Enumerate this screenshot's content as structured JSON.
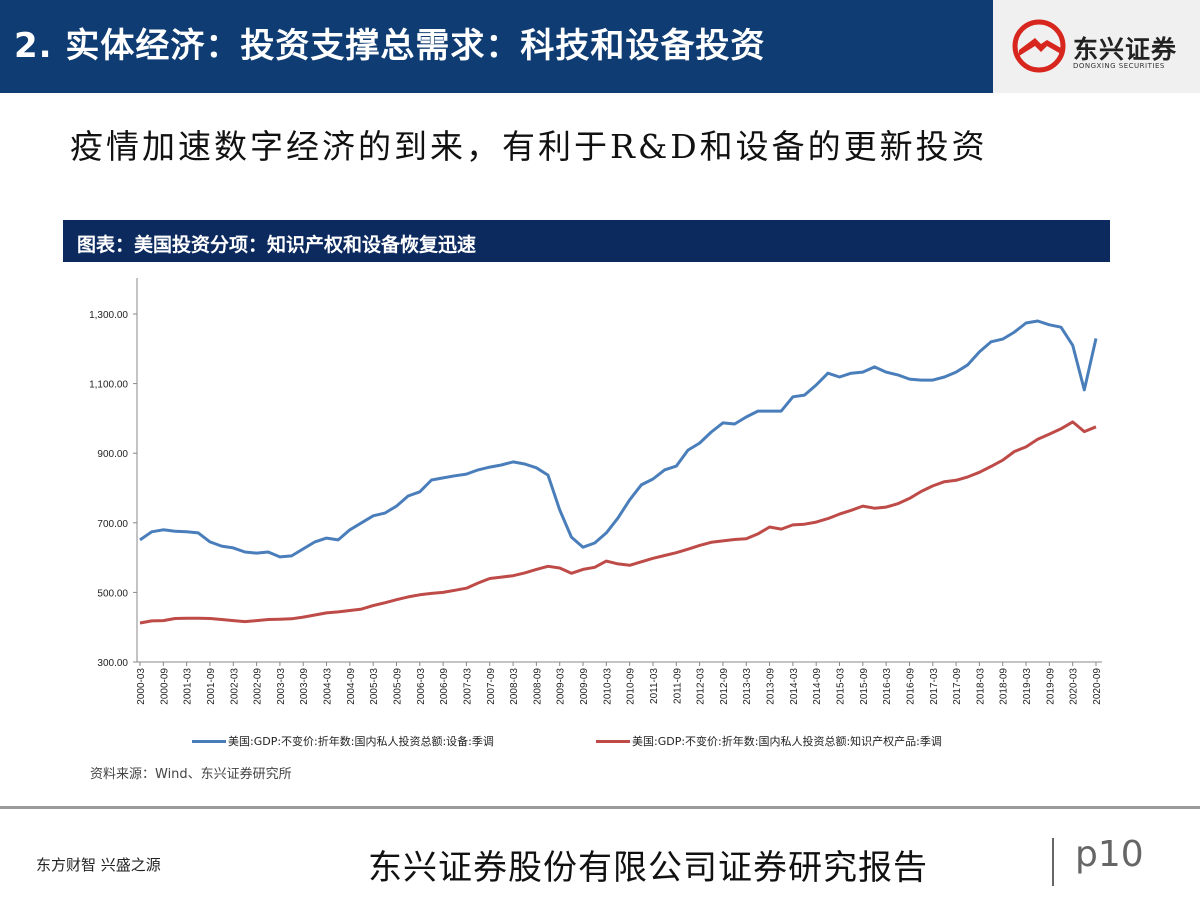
{
  "header": {
    "title": "2. 实体经济：投资支撑总需求：科技和设备投资",
    "logo_cn": "东兴证券",
    "logo_en": "DONGXING SECURITIES"
  },
  "subtitle": "疫情加速数字经济的到来，有利于R&D和设备的更新投资",
  "chart_title": "图表：美国投资分项：知识产权和设备恢复迅速",
  "chart_data": {
    "type": "line",
    "title": "",
    "xlabel": "",
    "ylabel": "",
    "ylim": [
      300,
      1400
    ],
    "yticks": [
      "300.00",
      "500.00",
      "700.00",
      "900.00",
      "1,100.00",
      "1,300.00"
    ],
    "ytick_values": [
      300,
      500,
      700,
      900,
      1100,
      1300
    ],
    "grid": false,
    "legend_position": "bottom",
    "x_start": "2000-03",
    "x_step_months": 3,
    "xticks": [
      "2000-03",
      "2000-09",
      "2001-03",
      "2001-09",
      "2002-03",
      "2002-09",
      "2003-03",
      "2003-09",
      "2004-03",
      "2004-09",
      "2005-03",
      "2005-09",
      "2006-03",
      "2006-09",
      "2007-03",
      "2007-09",
      "2008-03",
      "2008-09",
      "2009-03",
      "2009-09",
      "2010-03",
      "2010-09",
      "2011-03",
      "2011-09",
      "2012-03",
      "2012-09",
      "2013-03",
      "2013-09",
      "2014-03",
      "2014-09",
      "2015-03",
      "2015-09",
      "2016-03",
      "2016-09",
      "2017-03",
      "2017-09",
      "2018-03",
      "2018-09",
      "2019-03",
      "2019-09",
      "2020-03",
      "2020-09"
    ],
    "series": [
      {
        "name": "美国:GDP:不变价:折年数:国内私人投资总额:设备:季调",
        "color": "#4a7ebb",
        "values": [
          651,
          674,
          680,
          676,
          674,
          671,
          645,
          633,
          628,
          616,
          613,
          616,
          602,
          605,
          625,
          645,
          656,
          651,
          680,
          700,
          720,
          728,
          748,
          777,
          789,
          823,
          829,
          835,
          840,
          852,
          860,
          866,
          875,
          869,
          858,
          837,
          737,
          659,
          630,
          642,
          671,
          714,
          766,
          809,
          826,
          852,
          863,
          909,
          929,
          961,
          987,
          984,
          1004,
          1021,
          1021,
          1021,
          1062,
          1067,
          1096,
          1130,
          1119,
          1130,
          1133,
          1148,
          1133,
          1125,
          1113,
          1110,
          1110,
          1119,
          1133,
          1154,
          1191,
          1220,
          1228,
          1248,
          1274,
          1280,
          1269,
          1262,
          1210,
          1082,
          1230
        ]
      },
      {
        "name": "美国:GDP:不变价:折年数:国内私人投资总额:知识产权产品:季调",
        "color": "#be4b48",
        "values": [
          412,
          418,
          419,
          425,
          426,
          426,
          425,
          422,
          419,
          416,
          419,
          422,
          423,
          424,
          429,
          435,
          441,
          444,
          448,
          452,
          462,
          470,
          479,
          487,
          493,
          497,
          500,
          506,
          512,
          527,
          540,
          544,
          548,
          556,
          566,
          575,
          570,
          555,
          566,
          572,
          590,
          582,
          578,
          588,
          598,
          606,
          614,
          624,
          635,
          644,
          648,
          652,
          654,
          668,
          688,
          682,
          694,
          696,
          702,
          712,
          725,
          736,
          748,
          742,
          745,
          755,
          770,
          790,
          806,
          818,
          822,
          832,
          845,
          862,
          880,
          905,
          918,
          940,
          955,
          970,
          990,
          962,
          976
        ]
      }
    ]
  },
  "source": "资料来源：Wind、东兴证券研究所",
  "footer": {
    "slogan": "东方财智 兴盛之源",
    "company": "东兴证券股份有限公司证券研究报告",
    "page": "p10"
  }
}
